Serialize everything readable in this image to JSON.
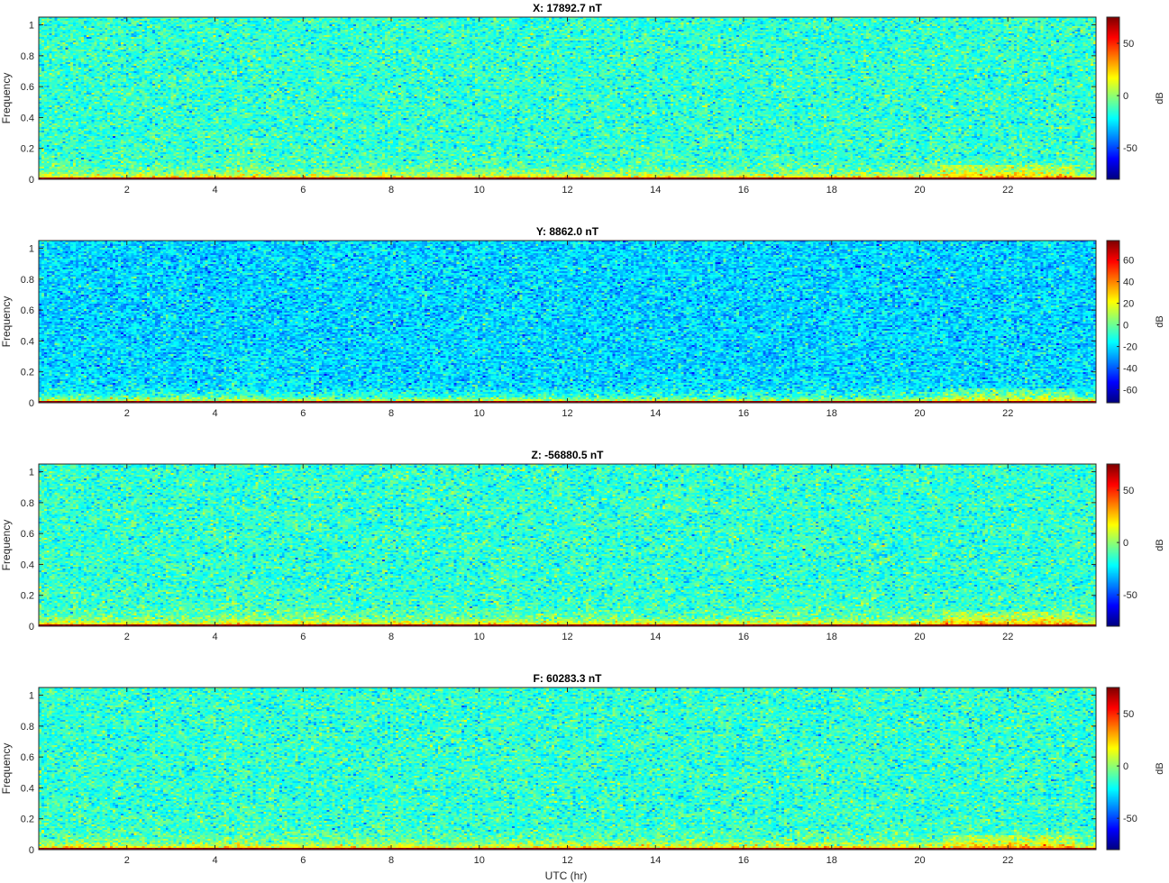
{
  "figure": {
    "xlabel": "UTC (hr)"
  },
  "chart_data": [
    {
      "type": "heatmap",
      "title": "X: 17892.7 nT",
      "ylabel": "Frequency",
      "xlim": [
        0,
        24
      ],
      "ylim": [
        0,
        1.05
      ],
      "xticks": [
        2,
        4,
        6,
        8,
        10,
        12,
        14,
        16,
        18,
        20,
        22
      ],
      "xtick_labels": [
        "2",
        "4",
        "6",
        "8",
        "10",
        "12",
        "14",
        "16",
        "18",
        "20",
        "22"
      ],
      "yticks": [
        0,
        0.2,
        0.4,
        0.6,
        0.8,
        1
      ],
      "ytick_labels": [
        "0",
        "0.2",
        "0.4",
        "0.6",
        "0.8",
        "1"
      ],
      "colormap": "jet",
      "colorbar": {
        "label": "dB",
        "clim": [
          -80,
          75
        ],
        "ticks": [
          50,
          0,
          -50
        ],
        "tick_labels": [
          "50",
          "0",
          "-50"
        ]
      },
      "background_db": -15,
      "baseline_db": 75
    },
    {
      "type": "heatmap",
      "title": "Y: 8862.0 nT",
      "ylabel": "Frequency",
      "xlim": [
        0,
        24
      ],
      "ylim": [
        0,
        1.05
      ],
      "xticks": [
        2,
        4,
        6,
        8,
        10,
        12,
        14,
        16,
        18,
        20,
        22
      ],
      "xtick_labels": [
        "2",
        "4",
        "6",
        "8",
        "10",
        "12",
        "14",
        "16",
        "18",
        "20",
        "22"
      ],
      "yticks": [
        0,
        0.2,
        0.4,
        0.6,
        0.8,
        1
      ],
      "ytick_labels": [
        "0",
        "0.2",
        "0.4",
        "0.6",
        "0.8",
        "1"
      ],
      "colormap": "jet",
      "colorbar": {
        "label": "dB",
        "clim": [
          -72,
          78
        ],
        "ticks": [
          60,
          40,
          20,
          0,
          -20,
          -40,
          -60
        ],
        "tick_labels": [
          "60",
          "40",
          "20",
          "0",
          "-20",
          "-40",
          "-60"
        ]
      },
      "background_db": -22,
      "baseline_db": 78
    },
    {
      "type": "heatmap",
      "title": "Z: -56880.5 nT",
      "ylabel": "Frequency",
      "xlim": [
        0,
        24
      ],
      "ylim": [
        0,
        1.05
      ],
      "xticks": [
        2,
        4,
        6,
        8,
        10,
        12,
        14,
        16,
        18,
        20,
        22
      ],
      "xtick_labels": [
        "2",
        "4",
        "6",
        "8",
        "10",
        "12",
        "14",
        "16",
        "18",
        "20",
        "22"
      ],
      "yticks": [
        0,
        0.2,
        0.4,
        0.6,
        0.8,
        1
      ],
      "ytick_labels": [
        "0",
        "0.2",
        "0.4",
        "0.6",
        "0.8",
        "1"
      ],
      "colormap": "jet",
      "colorbar": {
        "label": "dB",
        "clim": [
          -80,
          75
        ],
        "ticks": [
          50,
          0,
          -50
        ],
        "tick_labels": [
          "50",
          "0",
          "-50"
        ]
      },
      "background_db": -15,
      "baseline_db": 75
    },
    {
      "type": "heatmap",
      "title": "F: 60283.3 nT",
      "ylabel": "Frequency",
      "xlim": [
        0,
        24
      ],
      "ylim": [
        0,
        1.05
      ],
      "xticks": [
        2,
        4,
        6,
        8,
        10,
        12,
        14,
        16,
        18,
        20,
        22
      ],
      "xtick_labels": [
        "2",
        "4",
        "6",
        "8",
        "10",
        "12",
        "14",
        "16",
        "18",
        "20",
        "22"
      ],
      "yticks": [
        0,
        0.2,
        0.4,
        0.6,
        0.8,
        1
      ],
      "ytick_labels": [
        "0",
        "0.2",
        "0.4",
        "0.6",
        "0.8",
        "1"
      ],
      "colormap": "jet",
      "colorbar": {
        "label": "dB",
        "clim": [
          -80,
          75
        ],
        "ticks": [
          50,
          0,
          -50
        ],
        "tick_labels": [
          "50",
          "0",
          "-50"
        ]
      },
      "background_db": -15,
      "baseline_db": 75
    }
  ]
}
